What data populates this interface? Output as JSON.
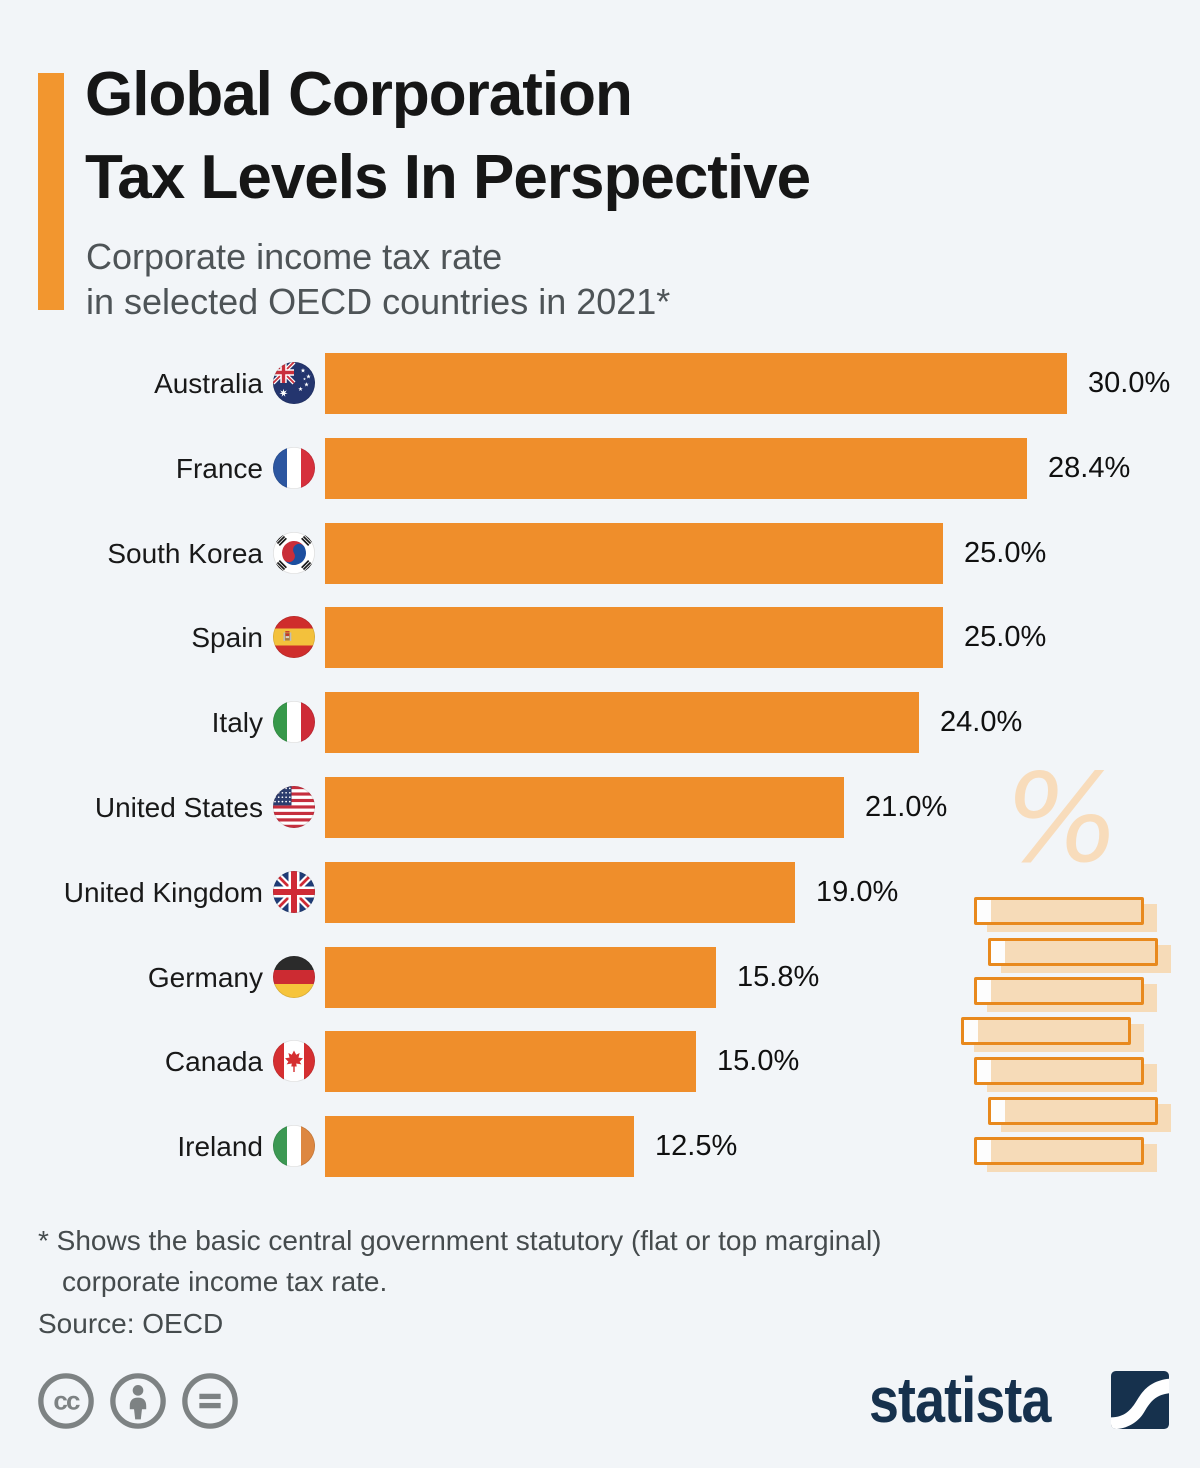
{
  "header": {
    "title_lines": [
      "Global Corporation",
      "Tax Levels In Perspective"
    ],
    "subtitle_lines": [
      "Corporate income tax rate",
      "in selected OECD countries in 2021*"
    ]
  },
  "chart_data": {
    "type": "bar",
    "orientation": "horizontal",
    "title": "Global Corporation Tax Levels In Perspective",
    "subtitle": "Corporate income tax rate in selected OECD countries in 2021*",
    "unit": "%",
    "xlim": [
      0,
      30
    ],
    "grid": false,
    "categories": [
      "Australia",
      "France",
      "South Korea",
      "Spain",
      "Italy",
      "United States",
      "United Kingdom",
      "Germany",
      "Canada",
      "Ireland"
    ],
    "values": [
      30.0,
      28.4,
      25.0,
      25.0,
      24.0,
      21.0,
      19.0,
      15.8,
      15.0,
      12.5
    ],
    "value_labels": [
      "30.0%",
      "28.4%",
      "25.0%",
      "25.0%",
      "24.0%",
      "21.0%",
      "19.0%",
      "15.8%",
      "15.0%",
      "12.5%"
    ],
    "flag_icons": [
      "flag-australia",
      "flag-france",
      "flag-south-korea",
      "flag-spain",
      "flag-italy",
      "flag-united-states",
      "flag-united-kingdom",
      "flag-germany",
      "flag-canada",
      "flag-ireland"
    ],
    "flag_codes": [
      "au",
      "fr",
      "kr",
      "es",
      "it",
      "us",
      "gb",
      "de",
      "ca",
      "ie"
    ],
    "bar_color": "#ef8e2b"
  },
  "decor": {
    "percent_symbol": "%",
    "watermark_color": "#f8dcbb",
    "block_fill": "#f6dbb8",
    "block_border": "#e8891d"
  },
  "footer": {
    "footnote_lines": [
      "* Shows the basic central government statutory (flat or top marginal)",
      "corporate income tax rate."
    ],
    "source": "Source: OECD",
    "license_icons": [
      "cc-icon",
      "attribution-icon",
      "no-derivatives-icon"
    ],
    "brand": "statista"
  },
  "colors": {
    "background": "#f2f5f8",
    "accent_bar": "#f2962f",
    "bar_orange": "#ef8e2b",
    "title_text": "#161616",
    "subtitle_text": "#4e5457",
    "footnote_text": "#454b4d",
    "brand_navy": "#16314d",
    "license_gray": "#7d8283"
  }
}
